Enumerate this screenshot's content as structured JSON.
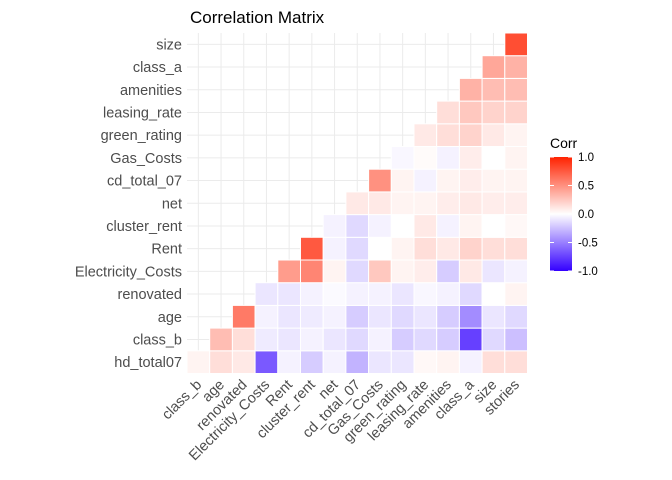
{
  "chart_data": {
    "type": "heatmap",
    "title": "Correlation Matrix",
    "legend_title": "Corr",
    "legend_position": "right",
    "color_scale": {
      "low": "#3300ff",
      "mid": "#ffffff",
      "high": "#ff2200",
      "limits": [
        -1.0,
        1.0
      ]
    },
    "legend_breaks": [
      "1.0",
      "0.5",
      "0.0",
      "-0.5",
      "-1.0"
    ],
    "x_labels": [
      "class_b",
      "age",
      "renovated",
      "Electricity_Costs",
      "Rent",
      "cluster_rent",
      "net",
      "cd_total_07",
      "Gas_Costs",
      "green_rating",
      "leasing_rate",
      "amenities",
      "class_a",
      "size",
      "stories"
    ],
    "y_labels": [
      "hd_total07",
      "class_b",
      "age",
      "renovated",
      "Electricity_Costs",
      "Rent",
      "cluster_rent",
      "net",
      "cd_total_07",
      "Gas_Costs",
      "green_rating",
      "leasing_rate",
      "amenities",
      "class_a",
      "size"
    ],
    "grid": true,
    "values": [
      [
        0.05,
        0.15,
        0.1,
        -0.65,
        -0.05,
        -0.2,
        -0.05,
        -0.3,
        -0.1,
        -0.1,
        0.03,
        0.05,
        -0.05,
        0.15,
        0.15
      ],
      [
        null,
        0.3,
        0.15,
        -0.08,
        -0.1,
        -0.05,
        -0.1,
        -0.15,
        -0.05,
        -0.2,
        -0.15,
        -0.2,
        -0.75,
        -0.15,
        -0.25
      ],
      [
        null,
        null,
        0.6,
        -0.05,
        -0.1,
        -0.08,
        -0.05,
        -0.2,
        -0.1,
        -0.15,
        -0.1,
        -0.2,
        -0.45,
        -0.1,
        -0.15
      ],
      [
        null,
        null,
        null,
        -0.1,
        -0.1,
        -0.05,
        -0.02,
        -0.05,
        -0.05,
        -0.1,
        -0.03,
        -0.05,
        -0.15,
        0.0,
        0.05
      ],
      [
        null,
        null,
        null,
        null,
        0.45,
        0.55,
        0.05,
        -0.15,
        0.25,
        0.05,
        0.08,
        -0.2,
        0.1,
        -0.1,
        -0.05
      ],
      [
        null,
        null,
        null,
        null,
        null,
        0.75,
        -0.05,
        -0.15,
        0.0,
        0.05,
        0.15,
        0.1,
        0.2,
        0.15,
        0.15
      ],
      [
        null,
        null,
        null,
        null,
        null,
        null,
        -0.05,
        -0.15,
        -0.05,
        0.0,
        0.1,
        -0.05,
        0.05,
        0.0,
        0.03
      ],
      [
        null,
        null,
        null,
        null,
        null,
        null,
        null,
        0.1,
        0.1,
        0.05,
        0.05,
        0.08,
        0.1,
        0.08,
        0.08
      ],
      [
        null,
        null,
        null,
        null,
        null,
        null,
        null,
        null,
        0.5,
        0.05,
        -0.05,
        0.05,
        0.08,
        0.05,
        0.05
      ],
      [
        null,
        null,
        null,
        null,
        null,
        null,
        null,
        null,
        null,
        -0.03,
        0.02,
        -0.05,
        0.08,
        0.0,
        0.05
      ],
      [
        null,
        null,
        null,
        null,
        null,
        null,
        null,
        null,
        null,
        null,
        0.1,
        0.15,
        0.2,
        0.1,
        0.05
      ],
      [
        null,
        null,
        null,
        null,
        null,
        null,
        null,
        null,
        null,
        null,
        null,
        0.15,
        0.25,
        0.2,
        0.2
      ],
      [
        null,
        null,
        null,
        null,
        null,
        null,
        null,
        null,
        null,
        null,
        null,
        null,
        0.35,
        0.3,
        0.3
      ],
      [
        null,
        null,
        null,
        null,
        null,
        null,
        null,
        null,
        null,
        null,
        null,
        null,
        null,
        0.4,
        0.35
      ],
      [
        null,
        null,
        null,
        null,
        null,
        null,
        null,
        null,
        null,
        null,
        null,
        null,
        null,
        null,
        0.8
      ]
    ]
  }
}
